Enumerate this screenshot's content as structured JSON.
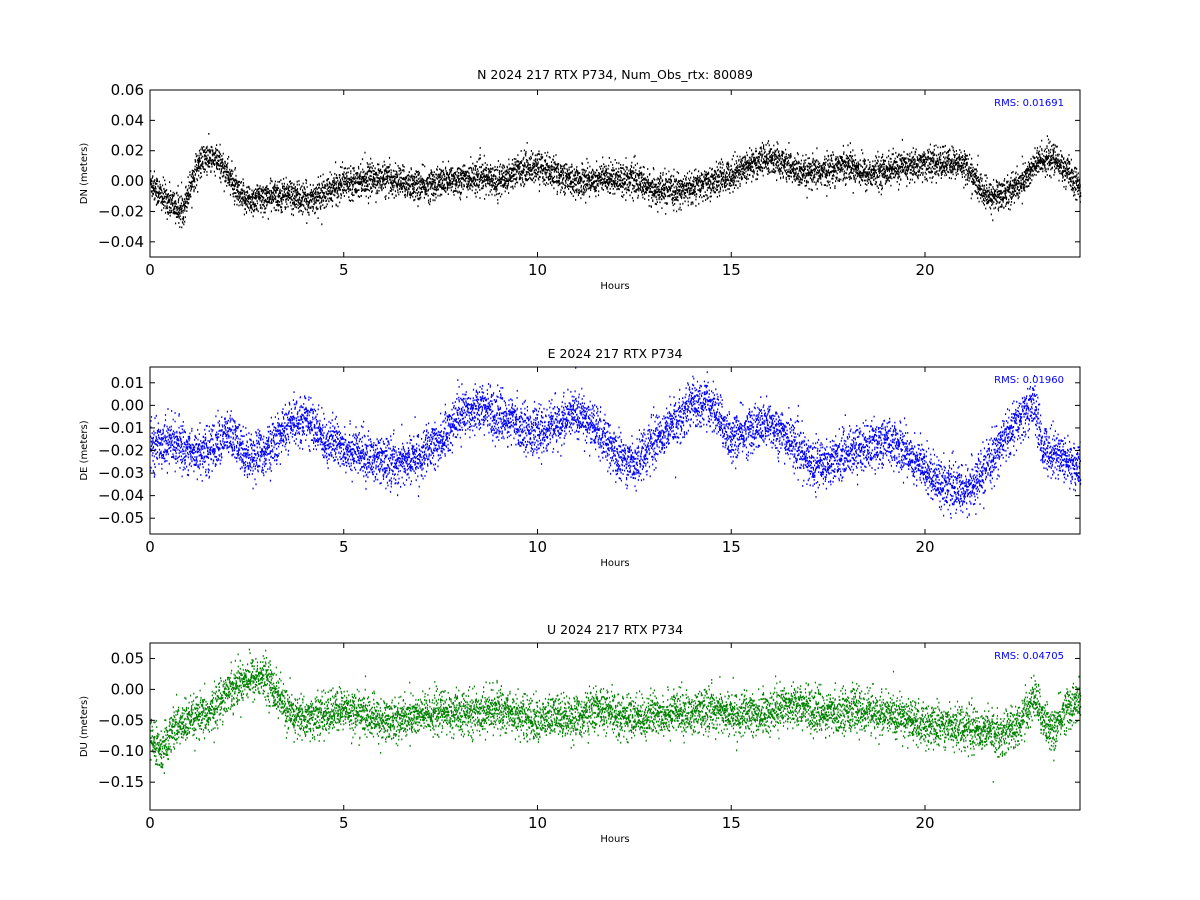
{
  "chart_data": [
    {
      "type": "scatter",
      "title": "N 2024 217 RTX  P734, Num_Obs_rtx: 80089",
      "xlabel": "Hours",
      "ylabel": "DN (meters)",
      "xlim": [
        0,
        24
      ],
      "ylim": [
        -0.05,
        0.06
      ],
      "xticks": [
        0,
        5,
        10,
        15,
        20
      ],
      "xtick_labels": [
        "0",
        "5",
        "10",
        "15",
        "20"
      ],
      "yticks": [
        -0.04,
        -0.02,
        0.0,
        0.02,
        0.04,
        0.06
      ],
      "ytick_labels": [
        "−0.04",
        "−0.02",
        "0.00",
        "0.02",
        "0.04",
        "0.06"
      ],
      "annotation": "RMS:  0.01691",
      "grid": false,
      "colors": {
        "points": "#000000",
        "annotation": "#0000ff"
      },
      "series": [
        {
          "x": [
            0,
            0.3,
            0.6,
            0.8,
            1.0,
            1.2,
            1.4,
            1.6,
            1.8,
            2.0,
            2.3,
            2.6,
            3.0,
            3.5,
            4.0,
            4.5,
            5.0,
            5.5,
            6.0,
            6.5,
            7.0,
            7.5,
            8.0,
            8.5,
            9.0,
            9.5,
            10.0,
            10.5,
            11.0,
            11.5,
            12.0,
            12.5,
            13.0,
            13.5,
            14.0,
            14.5,
            15.0,
            15.5,
            16.0,
            16.5,
            16.8,
            17.0,
            17.5,
            18.0,
            18.5,
            19.0,
            19.5,
            20.0,
            20.5,
            21.0,
            21.3,
            21.6,
            22.0,
            22.5,
            22.8,
            23.0,
            23.3,
            23.6,
            24.0
          ],
          "y": [
            0.0,
            -0.01,
            -0.015,
            -0.02,
            -0.005,
            0.01,
            0.015,
            0.015,
            0.012,
            0.005,
            -0.01,
            -0.012,
            -0.01,
            -0.008,
            -0.012,
            -0.008,
            0.0,
            0.002,
            0.002,
            0.0,
            -0.003,
            0.0,
            0.002,
            0.003,
            0.001,
            0.008,
            0.01,
            0.005,
            0.0,
            0.002,
            0.003,
            0.001,
            -0.005,
            -0.006,
            -0.004,
            0.0,
            0.005,
            0.012,
            0.015,
            0.01,
            0.005,
            0.005,
            0.008,
            0.012,
            0.005,
            0.008,
            0.01,
            0.012,
            0.012,
            0.012,
            0.0,
            -0.01,
            -0.008,
            0.0,
            0.01,
            0.015,
            0.015,
            0.008,
            -0.005
          ],
          "spread": 0.0085
        }
      ]
    },
    {
      "type": "scatter",
      "title": "E 2024 217 RTX  P734",
      "xlabel": "Hours",
      "ylabel": "DE (meters)",
      "xlim": [
        0,
        24
      ],
      "ylim": [
        -0.057,
        0.017
      ],
      "xticks": [
        0,
        5,
        10,
        15,
        20
      ],
      "xtick_labels": [
        "0",
        "5",
        "10",
        "15",
        "20"
      ],
      "yticks": [
        -0.05,
        -0.04,
        -0.03,
        -0.02,
        -0.01,
        0.0,
        0.01
      ],
      "ytick_labels": [
        "−0.05",
        "−0.04",
        "−0.03",
        "−0.02",
        "−0.01",
        "0.00",
        "0.01"
      ],
      "annotation": "RMS:  0.01960",
      "grid": false,
      "colors": {
        "points": "#0000ff",
        "annotation": "#0000ff"
      },
      "series": [
        {
          "x": [
            0,
            0.5,
            1.0,
            1.5,
            2.0,
            2.5,
            3.0,
            3.5,
            4.0,
            4.5,
            5.0,
            5.5,
            6.0,
            6.5,
            7.0,
            7.5,
            8.0,
            8.5,
            9.0,
            9.5,
            10.0,
            10.5,
            11.0,
            11.5,
            12.0,
            12.5,
            13.0,
            13.5,
            14.0,
            14.5,
            15.0,
            15.5,
            16.0,
            16.5,
            17.0,
            17.5,
            18.0,
            18.5,
            19.0,
            19.5,
            20.0,
            20.5,
            21.0,
            21.5,
            22.0,
            22.5,
            22.8,
            23.0,
            23.5,
            24.0
          ],
          "y": [
            -0.018,
            -0.015,
            -0.02,
            -0.02,
            -0.012,
            -0.022,
            -0.02,
            -0.01,
            -0.005,
            -0.015,
            -0.018,
            -0.022,
            -0.025,
            -0.025,
            -0.022,
            -0.015,
            -0.003,
            0.0,
            -0.005,
            -0.008,
            -0.012,
            -0.008,
            -0.003,
            -0.01,
            -0.022,
            -0.025,
            -0.015,
            -0.008,
            0.002,
            0.0,
            -0.015,
            -0.01,
            -0.008,
            -0.015,
            -0.025,
            -0.025,
            -0.02,
            -0.018,
            -0.015,
            -0.02,
            -0.028,
            -0.035,
            -0.038,
            -0.03,
            -0.015,
            -0.005,
            0.002,
            -0.018,
            -0.022,
            -0.028
          ],
          "spread": 0.0085
        }
      ]
    },
    {
      "type": "scatter",
      "title": "U 2024 217 RTX  P734",
      "xlabel": "Hours",
      "ylabel": "DU (meters)",
      "xlim": [
        0,
        24
      ],
      "ylim": [
        -0.195,
        0.075
      ],
      "xticks": [
        0,
        5,
        10,
        15,
        20
      ],
      "xtick_labels": [
        "0",
        "5",
        "10",
        "15",
        "20"
      ],
      "yticks": [
        -0.15,
        -0.1,
        -0.05,
        0.0,
        0.05
      ],
      "ytick_labels": [
        "−0.15",
        "−0.10",
        "−0.05",
        "0.00",
        "0.05"
      ],
      "annotation": "RMS:  0.04705",
      "grid": false,
      "colors": {
        "points": "#008000",
        "annotation": "#0000ff"
      },
      "series": [
        {
          "x": [
            0,
            0.3,
            0.6,
            1.0,
            1.5,
            2.0,
            2.5,
            3.0,
            3.3,
            3.6,
            4.0,
            4.5,
            5.0,
            5.5,
            6.0,
            6.5,
            7.0,
            7.5,
            8.0,
            8.5,
            9.0,
            9.5,
            10.0,
            10.5,
            11.0,
            11.5,
            12.0,
            12.5,
            13.0,
            13.5,
            14.0,
            14.5,
            15.0,
            15.5,
            16.0,
            16.5,
            17.0,
            17.5,
            18.0,
            18.5,
            19.0,
            19.5,
            20.0,
            20.5,
            21.0,
            21.5,
            22.0,
            22.5,
            22.8,
            23.0,
            23.3,
            23.6,
            24.0
          ],
          "y": [
            -0.08,
            -0.1,
            -0.06,
            -0.05,
            -0.04,
            0.0,
            0.02,
            0.02,
            -0.01,
            -0.04,
            -0.045,
            -0.04,
            -0.03,
            -0.04,
            -0.05,
            -0.045,
            -0.04,
            -0.035,
            -0.04,
            -0.035,
            -0.03,
            -0.04,
            -0.05,
            -0.04,
            -0.045,
            -0.03,
            -0.04,
            -0.045,
            -0.04,
            -0.035,
            -0.04,
            -0.03,
            -0.04,
            -0.04,
            -0.035,
            -0.02,
            -0.03,
            -0.04,
            -0.03,
            -0.035,
            -0.04,
            -0.045,
            -0.06,
            -0.055,
            -0.06,
            -0.065,
            -0.07,
            -0.05,
            -0.01,
            -0.04,
            -0.07,
            -0.03,
            -0.02
          ],
          "spread": 0.028
        }
      ]
    }
  ]
}
